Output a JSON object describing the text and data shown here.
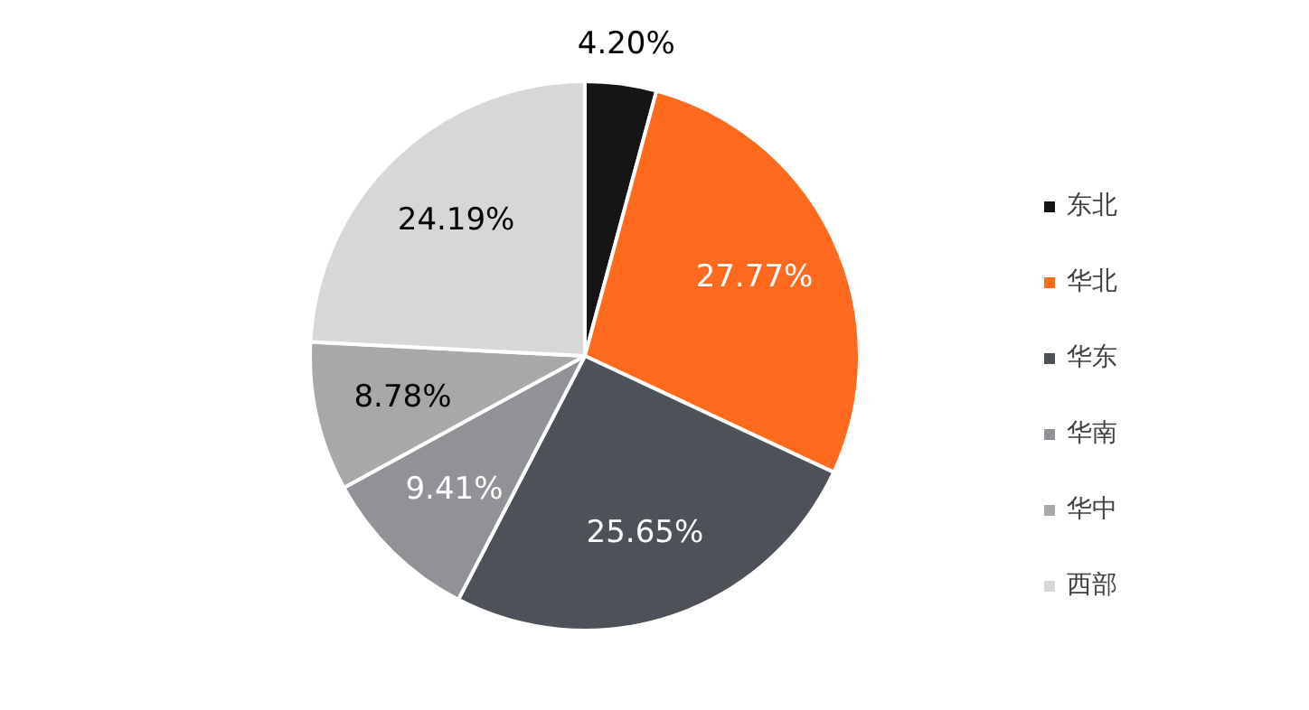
{
  "chart_data": {
    "type": "pie",
    "categories": [
      "东北",
      "华北",
      "华东",
      "华南",
      "华中",
      "西部"
    ],
    "values": [
      4.2,
      27.77,
      25.65,
      9.41,
      8.78,
      24.19
    ],
    "value_labels": [
      "4.20%",
      "27.77%",
      "25.65%",
      "9.41%",
      "8.78%",
      "24.19%"
    ],
    "colors": [
      "#151515",
      "#ff6a1f",
      "#4c5257",
      "#909295",
      "#a9a8a6",
      "#d7d7d5"
    ],
    "legend": "right"
  }
}
